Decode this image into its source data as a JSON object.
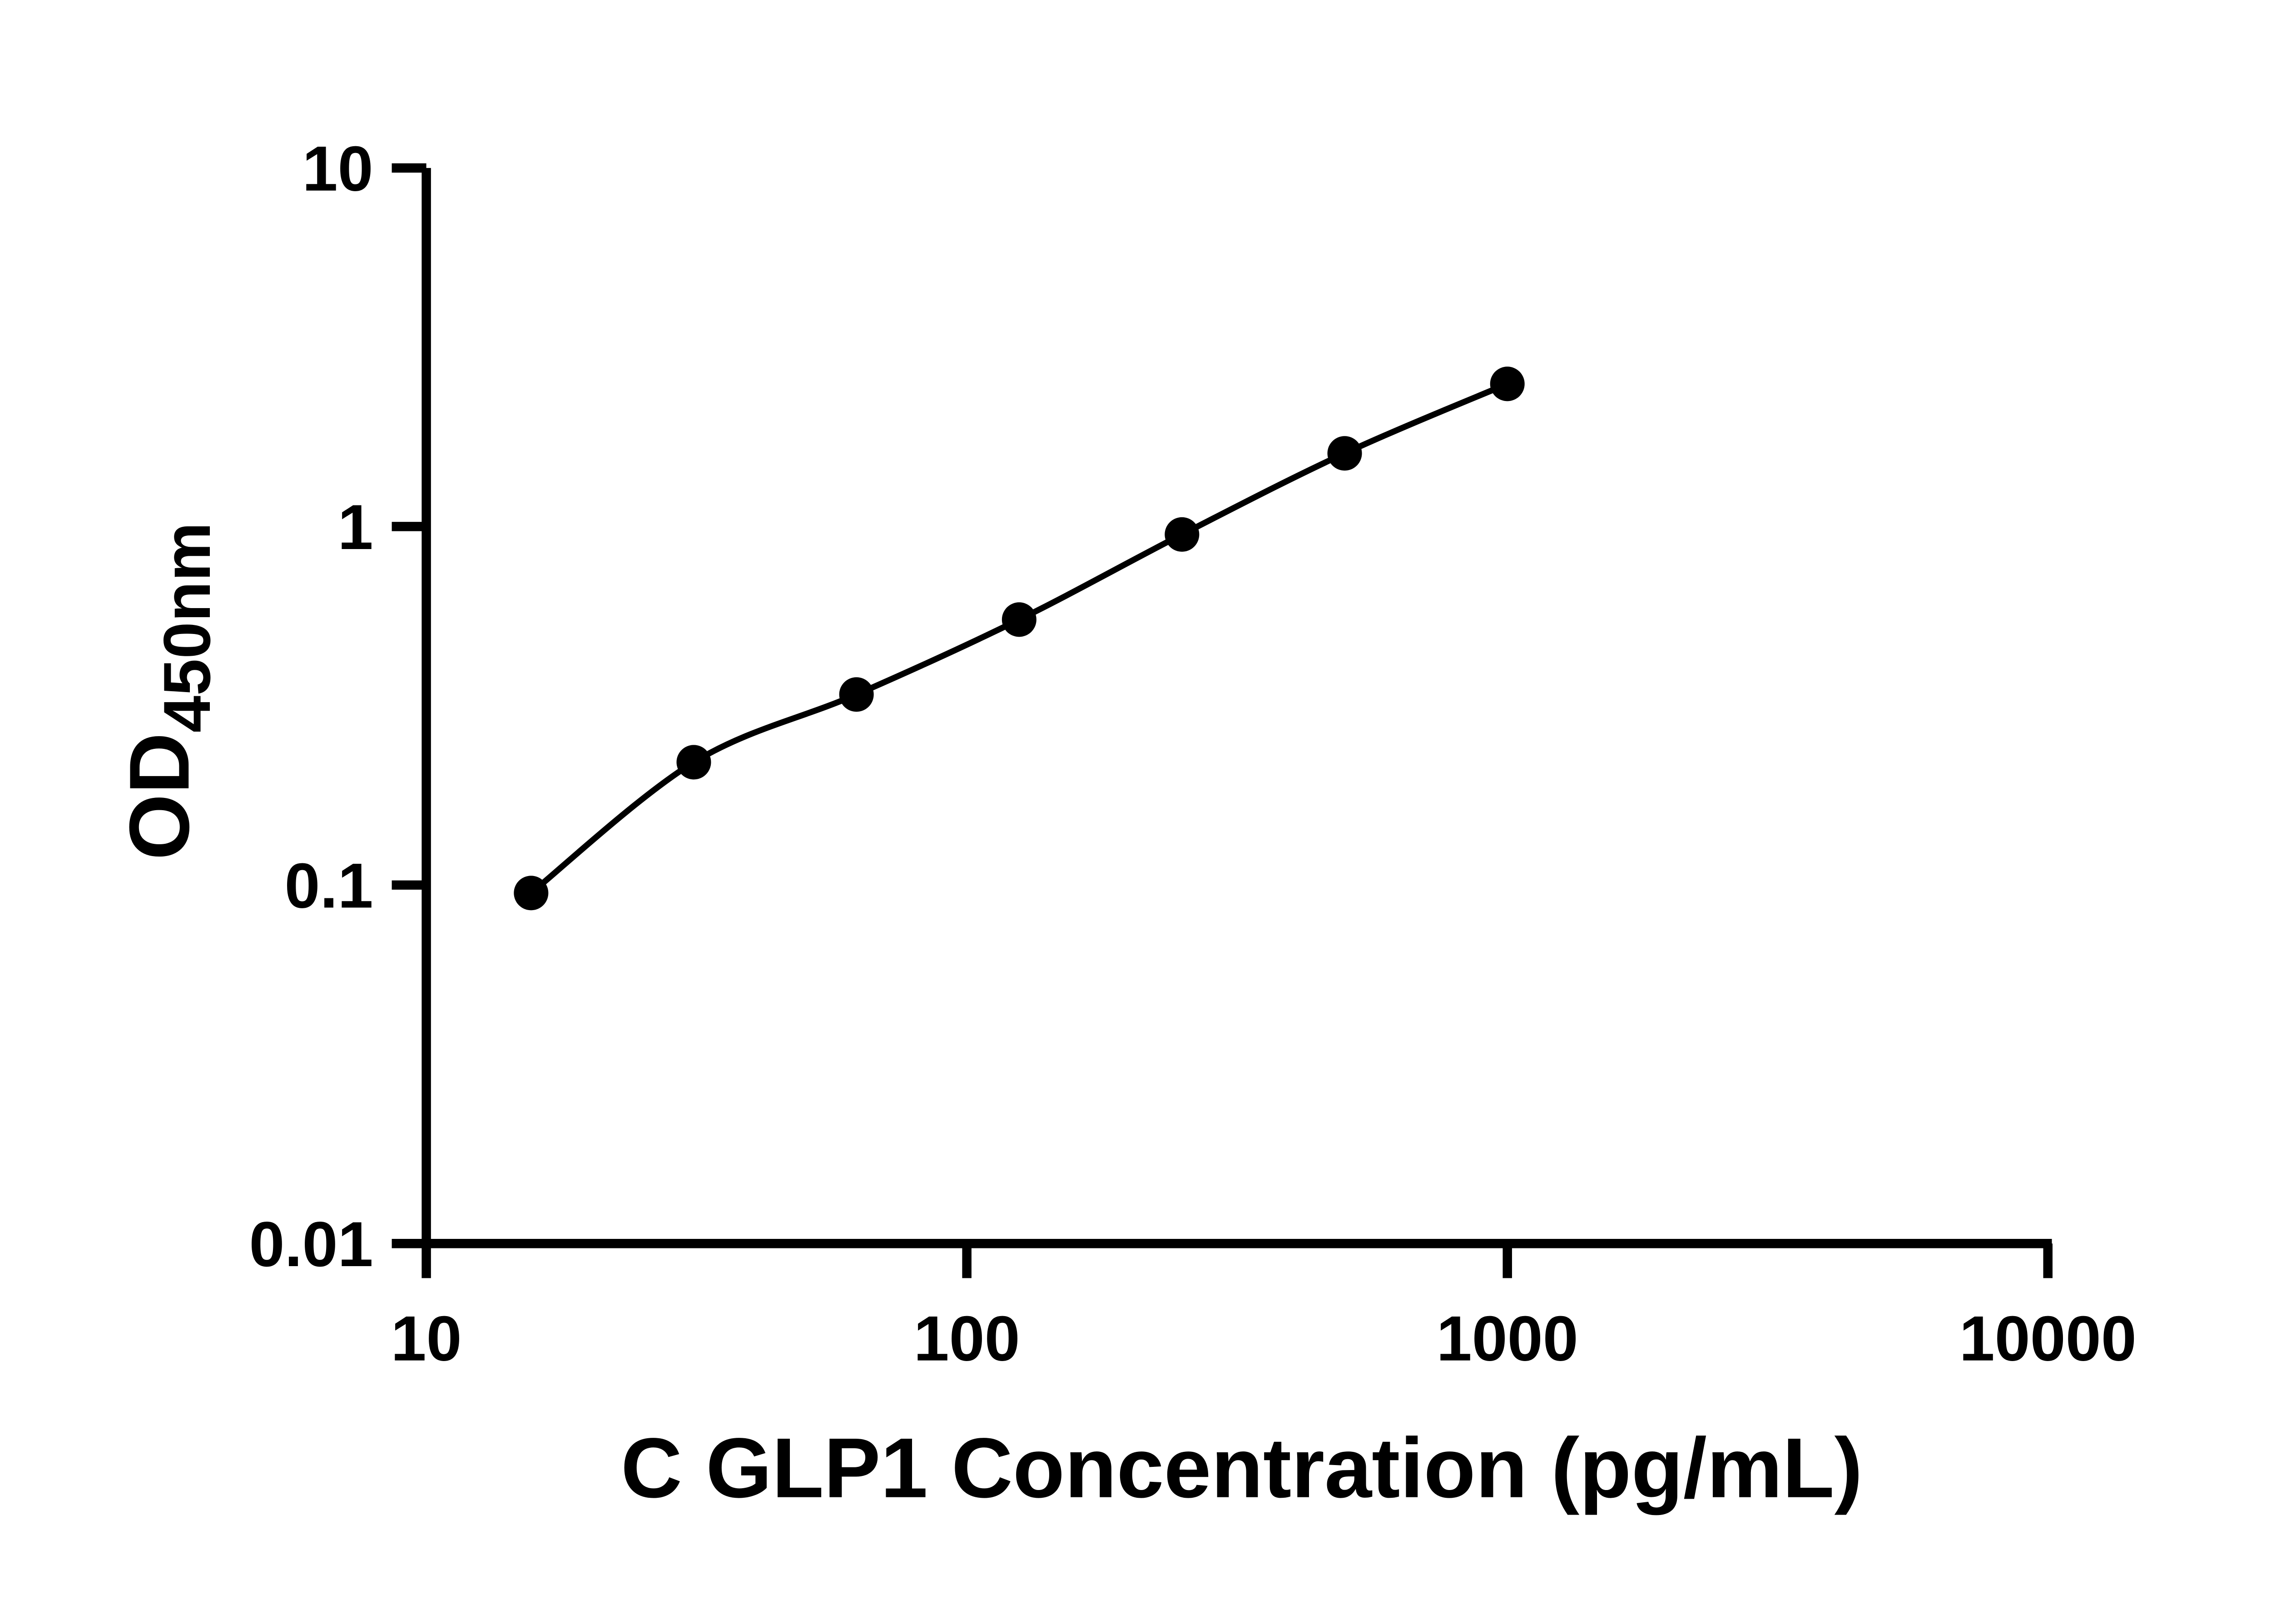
{
  "figure": {
    "background_color": "#ffffff"
  },
  "chart_data": {
    "type": "scatter",
    "title": "",
    "xlabel": "C GLP1 Concentration (pg/mL)",
    "ylabel": "OD450nm",
    "ylabel_main": "OD",
    "ylabel_subscript": "450nm",
    "x_scale": "log10",
    "y_scale": "log10",
    "xlim": [
      10,
      10000
    ],
    "ylim": [
      0.01,
      10
    ],
    "grid": false,
    "legend": "none",
    "axis_color": "#000000",
    "marker_color": "#000000",
    "line_color": "#000000",
    "x_ticks": [
      {
        "value": 10,
        "label": "10"
      },
      {
        "value": 100,
        "label": "100"
      },
      {
        "value": 1000,
        "label": "1000"
      },
      {
        "value": 10000,
        "label": "10000"
      }
    ],
    "y_ticks": [
      {
        "value": 10,
        "label": "10"
      },
      {
        "value": 1,
        "label": "1"
      },
      {
        "value": 0.1,
        "label": "0.1"
      },
      {
        "value": 0.01,
        "label": "0.01"
      }
    ],
    "series": [
      {
        "marker": "filled-circle",
        "line": "smooth-fit",
        "points": [
          {
            "x": 15.625,
            "y": 0.095
          },
          {
            "x": 31.25,
            "y": 0.22
          },
          {
            "x": 62.5,
            "y": 0.34
          },
          {
            "x": 125,
            "y": 0.55
          },
          {
            "x": 250,
            "y": 0.95
          },
          {
            "x": 500,
            "y": 1.6
          },
          {
            "x": 1000,
            "y": 2.5
          }
        ]
      }
    ]
  }
}
